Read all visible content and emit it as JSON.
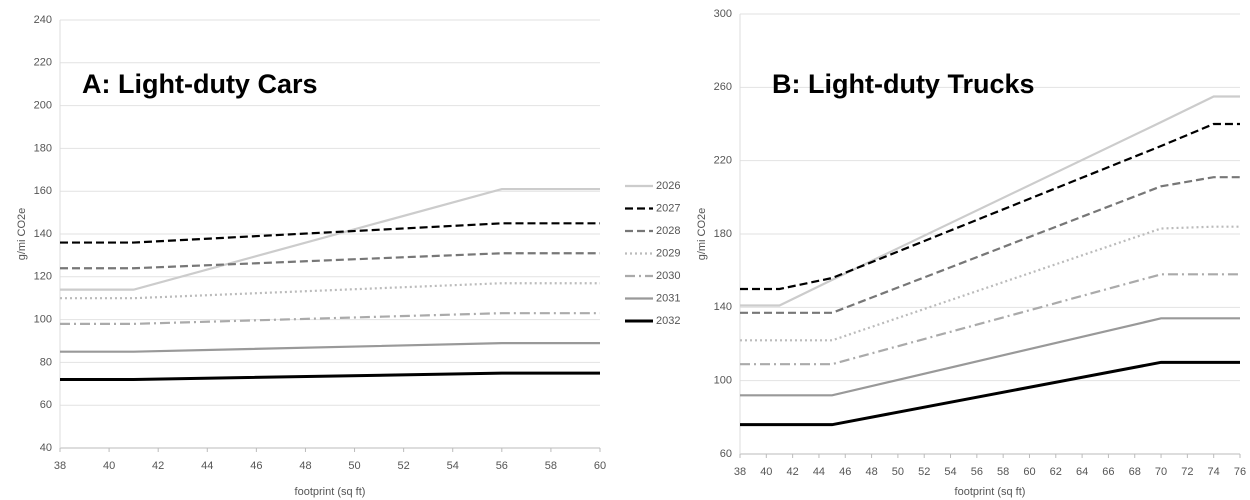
{
  "chart_data": [
    {
      "type": "line",
      "title": "A: Light-duty Cars",
      "x_label": "footprint (sq ft)",
      "y_label": "g/mi CO2e",
      "x": [
        38,
        41,
        56,
        60
      ],
      "xlim": [
        38,
        60
      ],
      "xticks": [
        38,
        40,
        42,
        44,
        46,
        48,
        50,
        52,
        54,
        56,
        58,
        60
      ],
      "ylim": [
        40,
        240
      ],
      "yticks": [
        40,
        60,
        80,
        100,
        120,
        140,
        160,
        180,
        200,
        220,
        240
      ],
      "grid": true,
      "legend": "right",
      "series": [
        {
          "name": "2026",
          "color": "#cccccc",
          "dash": "solid",
          "values": [
            114,
            114,
            161,
            161
          ]
        },
        {
          "name": "2027",
          "color": "#000000",
          "dash": "dashed",
          "values": [
            136,
            136,
            145,
            145
          ]
        },
        {
          "name": "2028",
          "color": "#777777",
          "dash": "dashed",
          "values": [
            124,
            124,
            131,
            131
          ]
        },
        {
          "name": "2029",
          "color": "#bbbbbb",
          "dash": "dotted",
          "values": [
            110,
            110,
            117,
            117
          ]
        },
        {
          "name": "2030",
          "color": "#aaaaaa",
          "dash": "dashdot",
          "values": [
            98,
            98,
            103,
            103
          ]
        },
        {
          "name": "2031",
          "color": "#999999",
          "dash": "solid",
          "values": [
            85,
            85,
            89,
            89
          ]
        },
        {
          "name": "2032",
          "color": "#000000",
          "dash": "solid",
          "values": [
            72,
            72,
            75,
            75
          ]
        }
      ]
    },
    {
      "type": "line",
      "title": "B: Light-duty Trucks",
      "x_label": "footprint (sq ft)",
      "y_label": "g/mi CO2e",
      "x": [
        38,
        41,
        45,
        70,
        74,
        76
      ],
      "xlim": [
        38,
        76
      ],
      "xticks": [
        38,
        40,
        42,
        44,
        46,
        48,
        50,
        52,
        54,
        56,
        58,
        60,
        62,
        64,
        66,
        68,
        70,
        72,
        74,
        76
      ],
      "ylim": [
        60,
        300
      ],
      "yticks": [
        60,
        100,
        140,
        180,
        220,
        260,
        300
      ],
      "grid": true,
      "series": [
        {
          "color": "#cccccc",
          "dash": "solid",
          "values": [
            141,
            141,
            155,
            241,
            255,
            255
          ]
        },
        {
          "color": "#000000",
          "dash": "dashed",
          "values": [
            150,
            150,
            156,
            228,
            240,
            240
          ]
        },
        {
          "color": "#777777",
          "dash": "dashed",
          "values": [
            137,
            137,
            137,
            206,
            211,
            211
          ]
        },
        {
          "color": "#bbbbbb",
          "dash": "dotted",
          "values": [
            122,
            122,
            122,
            183,
            184,
            184
          ]
        },
        {
          "color": "#aaaaaa",
          "dash": "dashdot",
          "values": [
            109,
            109,
            109,
            158,
            158,
            158
          ]
        },
        {
          "color": "#999999",
          "dash": "solid",
          "values": [
            92,
            92,
            92,
            134,
            134,
            134
          ]
        },
        {
          "color": "#000000",
          "dash": "solid",
          "values": [
            76,
            76,
            76,
            110,
            110,
            110
          ]
        }
      ]
    }
  ]
}
